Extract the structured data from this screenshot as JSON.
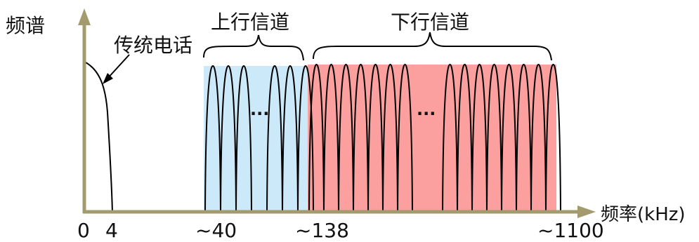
{
  "y_axis_label": "频谱",
  "x_axis_label": "频率(kHz)",
  "telephone_label": "传统电话",
  "upstream_label": "上行信道",
  "downstream_label": "下行信道",
  "ellipsis": "···",
  "ticks": [
    "0",
    "4",
    "~40",
    "~138",
    "~1100"
  ],
  "colors": {
    "axis": "#a39b6e",
    "upstream_band": "#cce9fa",
    "downstream_band": "#fb9f9f",
    "curve": "#000000"
  }
}
